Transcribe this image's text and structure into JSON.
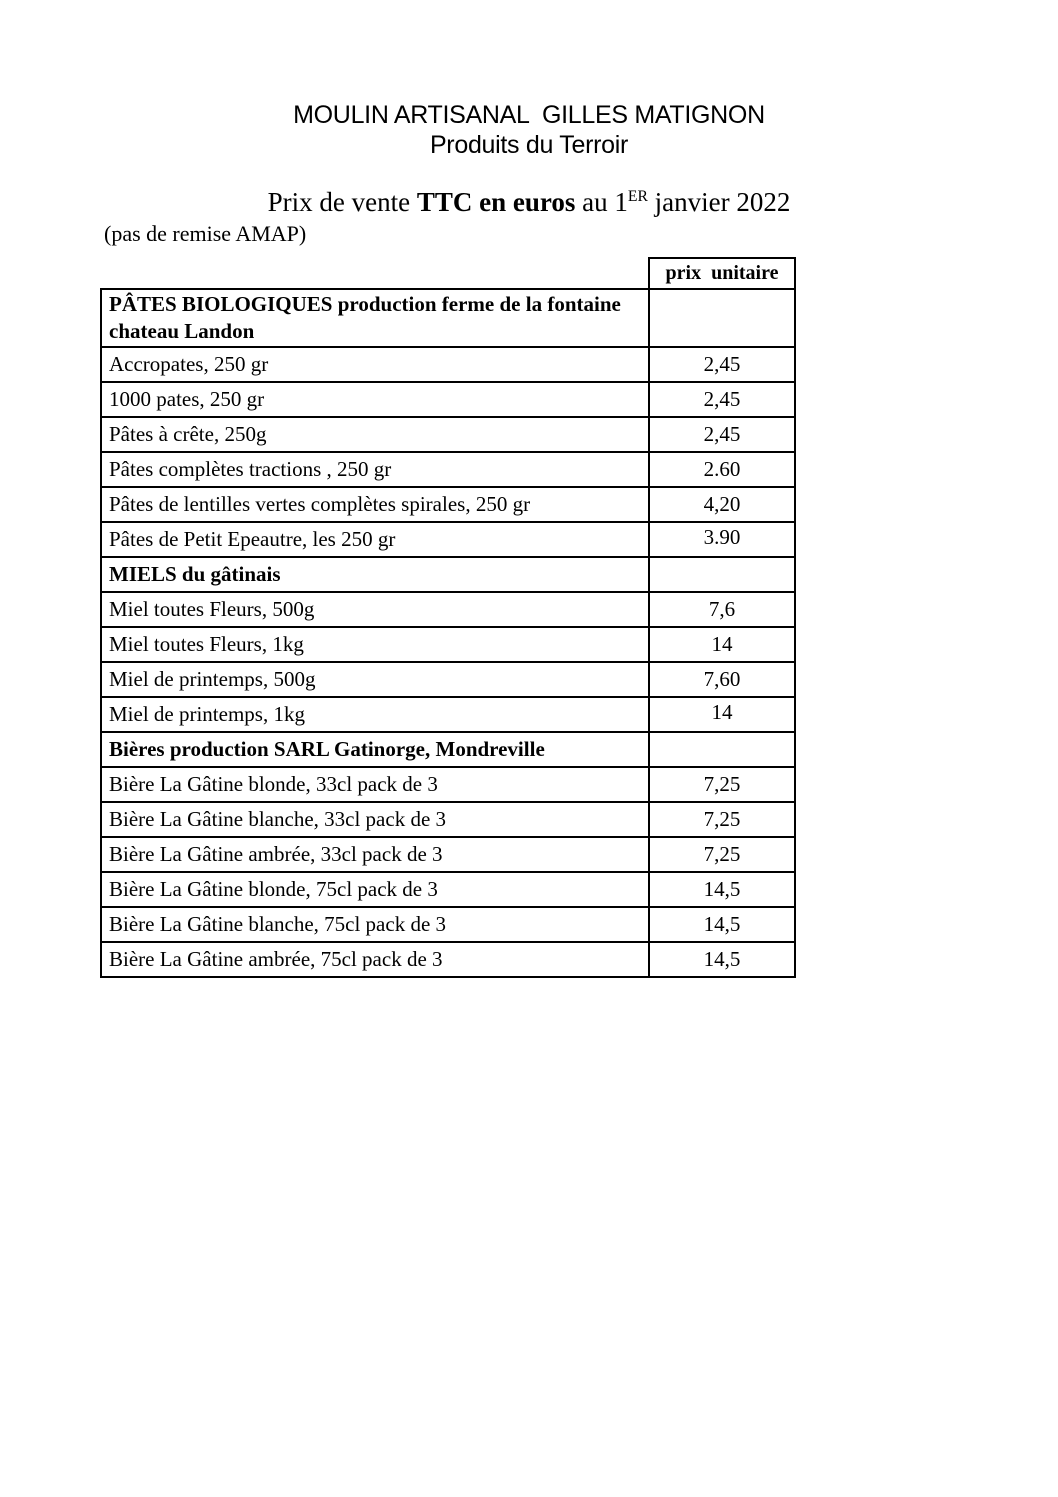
{
  "page": {
    "title_line1": "MOULIN ARTISANAL  GILLES MATIGNON",
    "title_line2": "Produits du Terroir",
    "subtitle": {
      "regular_start": "Prix de vente ",
      "bold": "TTC en euros",
      "regular_pre": " au 1",
      "superscript": "ER",
      "regular_post": " janvier 2022"
    },
    "note": "(pas de remise AMAP)"
  },
  "table": {
    "price_header": "prix  unitaire",
    "rows": [
      {
        "label": "PÂTES BIOLOGIQUES production ferme de la fontaine chateau Landon",
        "price": "",
        "section": true,
        "price_align_top": false
      },
      {
        "label": "Accropates, 250 gr",
        "price": "2,45",
        "section": false,
        "price_align_top": false
      },
      {
        "label": "1000 pates, 250 gr",
        "price": "2,45",
        "section": false,
        "price_align_top": false
      },
      {
        "label": "Pâtes à crête, 250g",
        "price": "2,45",
        "section": false,
        "price_align_top": false
      },
      {
        "label": "Pâtes complètes tractions , 250 gr",
        "price": "2.60",
        "section": false,
        "price_align_top": false
      },
      {
        "label": "Pâtes de lentilles vertes complètes spirales, 250 gr",
        "price": "4,20",
        "section": false,
        "price_align_top": false
      },
      {
        "label": "Pâtes de Petit Epeautre, les 250 gr",
        "price": "3.90",
        "section": false,
        "price_align_top": true
      },
      {
        "label": "MIELS du gâtinais",
        "price": "",
        "section": true,
        "price_align_top": false
      },
      {
        "label": "Miel toutes Fleurs, 500g",
        "price": "7,6",
        "section": false,
        "price_align_top": false
      },
      {
        "label": "Miel toutes Fleurs, 1kg",
        "price": "14",
        "section": false,
        "price_align_top": false
      },
      {
        "label": "Miel de printemps, 500g",
        "price": "7,60",
        "section": false,
        "price_align_top": false
      },
      {
        "label": "Miel de printemps, 1kg",
        "price": "14",
        "section": false,
        "price_align_top": true
      },
      {
        "label": "Bières production SARL Gatinorge, Mondreville",
        "price": "",
        "section": true,
        "price_align_top": false
      },
      {
        "label": "Bière La Gâtine blonde, 33cl pack de 3",
        "price": "7,25",
        "section": false,
        "price_align_top": false
      },
      {
        "label": "Bière La Gâtine blanche, 33cl pack de 3",
        "price": "7,25",
        "section": false,
        "price_align_top": false
      },
      {
        "label": "Bière La Gâtine ambrée, 33cl pack de 3",
        "price": "7,25",
        "section": false,
        "price_align_top": false
      },
      {
        "label": "Bière La Gâtine blonde, 75cl pack de 3",
        "price": "14,5",
        "section": false,
        "price_align_top": false
      },
      {
        "label": "Bière La Gâtine blanche, 75cl pack de 3",
        "price": "14,5",
        "section": false,
        "price_align_top": false
      },
      {
        "label": "Bière La Gâtine ambrée, 75cl pack de 3",
        "price": "14,5",
        "section": false,
        "price_align_top": false
      }
    ]
  },
  "colors": {
    "text": "#000000",
    "border": "#000000",
    "background": "#ffffff"
  }
}
